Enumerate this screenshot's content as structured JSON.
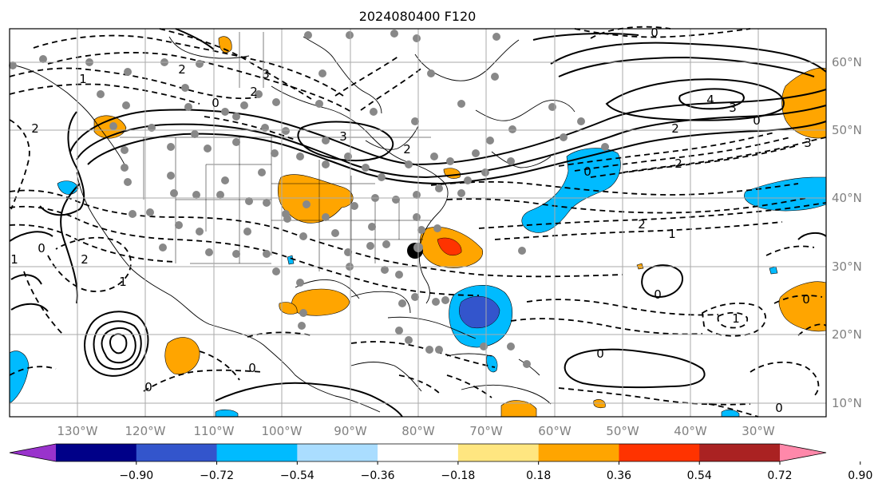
{
  "title": "2024080400 F120",
  "lat_labels": [
    "60°N",
    "50°N",
    "40°N",
    "30°N",
    "20°N",
    "10°N"
  ],
  "lon_labels": [
    "130°W",
    "120°W",
    "110°W",
    "100°W",
    "90°W",
    "80°W",
    "70°W",
    "60°W",
    "50°W",
    "40°W",
    "30°W"
  ],
  "colorbar": {
    "levels": [
      "−0.90",
      "−0.72",
      "−0.54",
      "−0.36",
      "−0.18",
      "0.18",
      "0.36",
      "0.54",
      "0.72",
      "0.90"
    ],
    "colors": [
      "#9933cc",
      "#000088",
      "#3355cc",
      "#00bbff",
      "#aaddff",
      "#ffffff",
      "#ffe680",
      "#ffa500",
      "#ff3300",
      "#aa2222",
      "#ff88aa"
    ]
  },
  "contour_labels": {
    "c1": "2",
    "c2": "3",
    "c3": "0",
    "c4": "2",
    "c5": "3",
    "c6": "2",
    "c7": "0",
    "c8": "4",
    "c9": "3",
    "c10": "2",
    "c11": "0",
    "c12": "2",
    "c13": "3",
    "c14": "2",
    "c15": "1",
    "c16": "0",
    "c17": "2",
    "c18": "1",
    "c19": "0",
    "c20": "1",
    "c21": "0",
    "c22": "0",
    "c23": "1",
    "c24": "0",
    "c25": "0",
    "c26": "0",
    "c27": "1",
    "c28": "0",
    "c29": "2"
  },
  "colors": {
    "positive_fill": "#ffa500",
    "strong_fill": "#ff3300",
    "negative_fill": "#00bbff",
    "strong_negative_fill": "#3355cc",
    "station": "#888888",
    "grid": "#aaaaaa"
  }
}
